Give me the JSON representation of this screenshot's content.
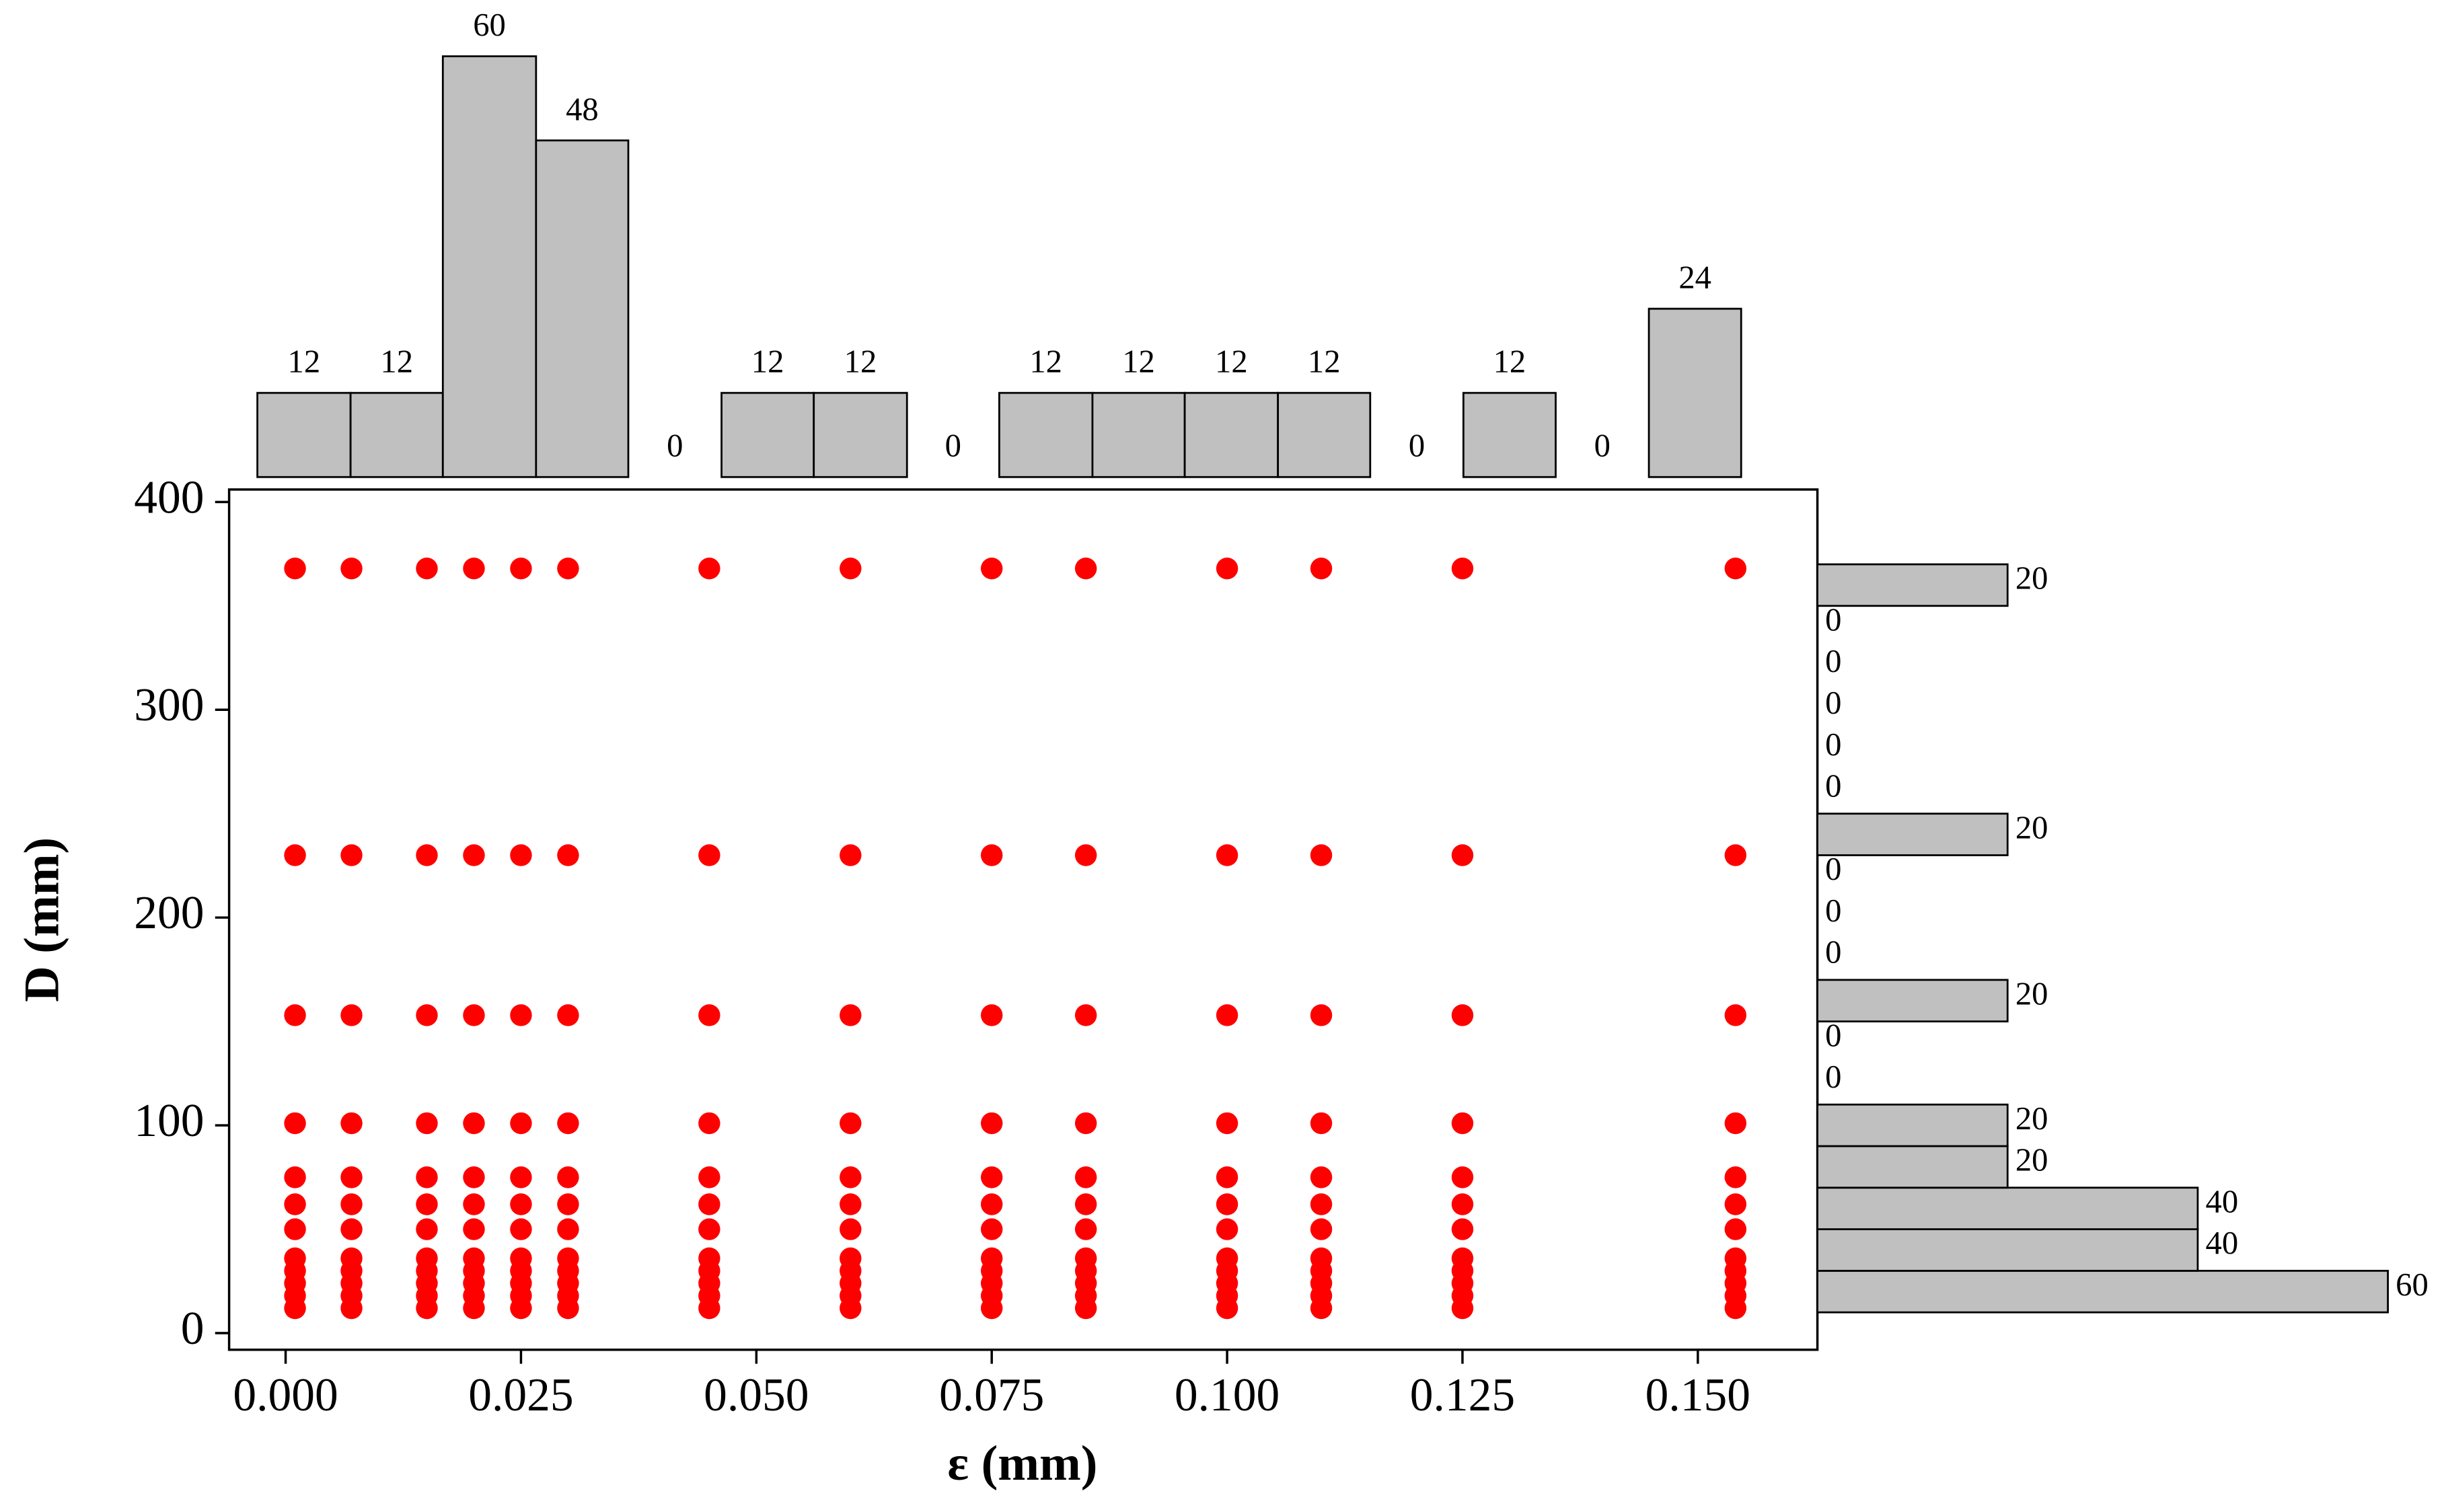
{
  "chart_data": [
    {
      "type": "scatter",
      "color": "#ff0000",
      "xlabel": "ε (mm)",
      "ylabel": "D (mm)",
      "xlim": [
        -0.006,
        0.1627
      ],
      "ylim": [
        -8,
        406
      ],
      "xticks": [
        {
          "value": 0,
          "label": "0.000"
        },
        {
          "value": 0.025,
          "label": "0.025"
        },
        {
          "value": 0.05,
          "label": "0.050"
        },
        {
          "value": 0.075,
          "label": "0.075"
        },
        {
          "value": 0.1,
          "label": "0.100"
        },
        {
          "value": 0.125,
          "label": "0.125"
        },
        {
          "value": 0.15,
          "label": "0.150"
        }
      ],
      "yticks": [
        0,
        100,
        200,
        300,
        400
      ],
      "x": [
        0.001,
        0.007,
        0.015,
        0.02,
        0.025,
        0.03,
        0.045,
        0.06,
        0.075,
        0.085,
        0.1,
        0.11,
        0.125,
        0.154,
        0.001,
        0.007,
        0.015,
        0.02,
        0.025,
        0.03,
        0.045,
        0.06,
        0.075,
        0.085,
        0.1,
        0.11,
        0.125,
        0.154,
        0.001,
        0.007,
        0.015,
        0.02,
        0.025,
        0.03,
        0.045,
        0.06,
        0.075,
        0.085,
        0.1,
        0.11,
        0.125,
        0.154,
        0.001,
        0.007,
        0.015,
        0.02,
        0.025,
        0.03,
        0.045,
        0.06,
        0.075,
        0.085,
        0.1,
        0.11,
        0.125,
        0.154,
        0.001,
        0.007,
        0.015,
        0.02,
        0.025,
        0.03,
        0.045,
        0.06,
        0.075,
        0.085,
        0.1,
        0.11,
        0.125,
        0.154,
        0.001,
        0.007,
        0.015,
        0.02,
        0.025,
        0.03,
        0.045,
        0.06,
        0.075,
        0.085,
        0.1,
        0.11,
        0.125,
        0.154,
        0.001,
        0.007,
        0.015,
        0.02,
        0.025,
        0.03,
        0.045,
        0.06,
        0.075,
        0.085,
        0.1,
        0.11,
        0.125,
        0.154,
        0.001,
        0.007,
        0.015,
        0.02,
        0.025,
        0.03,
        0.045,
        0.06,
        0.075,
        0.085,
        0.1,
        0.11,
        0.125,
        0.154,
        0.001,
        0.007,
        0.015,
        0.02,
        0.025,
        0.03,
        0.045,
        0.06,
        0.075,
        0.085,
        0.1,
        0.11,
        0.125,
        0.154,
        0.001,
        0.007,
        0.015,
        0.02,
        0.025,
        0.03,
        0.045,
        0.06,
        0.075,
        0.085,
        0.1,
        0.11,
        0.125,
        0.154,
        0.001,
        0.007,
        0.015,
        0.02,
        0.025,
        0.03,
        0.045,
        0.06,
        0.075,
        0.085,
        0.1,
        0.11,
        0.125,
        0.154,
        0.001,
        0.007,
        0.015,
        0.02,
        0.025,
        0.03,
        0.045,
        0.06,
        0.075,
        0.085,
        0.1,
        0.11,
        0.125,
        0.154
      ],
      "values": [
        12,
        12,
        12,
        12,
        12,
        12,
        12,
        12,
        12,
        12,
        12,
        12,
        12,
        12,
        18,
        18,
        18,
        18,
        18,
        18,
        18,
        18,
        18,
        18,
        18,
        18,
        18,
        18,
        24,
        24,
        24,
        24,
        24,
        24,
        24,
        24,
        24,
        24,
        24,
        24,
        24,
        24,
        30,
        30,
        30,
        30,
        30,
        30,
        30,
        30,
        30,
        30,
        30,
        30,
        30,
        30,
        36,
        36,
        36,
        36,
        36,
        36,
        36,
        36,
        36,
        36,
        36,
        36,
        36,
        36,
        50,
        50,
        50,
        50,
        50,
        50,
        50,
        50,
        50,
        50,
        50,
        50,
        50,
        50,
        62,
        62,
        62,
        62,
        62,
        62,
        62,
        62,
        62,
        62,
        62,
        62,
        62,
        62,
        75,
        75,
        75,
        75,
        75,
        75,
        75,
        75,
        75,
        75,
        75,
        75,
        75,
        75,
        101,
        101,
        101,
        101,
        101,
        101,
        101,
        101,
        101,
        101,
        101,
        101,
        101,
        101,
        153,
        153,
        153,
        153,
        153,
        153,
        153,
        153,
        153,
        153,
        153,
        153,
        153,
        153,
        230,
        230,
        230,
        230,
        230,
        230,
        230,
        230,
        230,
        230,
        230,
        230,
        230,
        230,
        368,
        368,
        368,
        368,
        368,
        368,
        368,
        368,
        368,
        368,
        368,
        368,
        368,
        368
      ]
    },
    {
      "type": "histogram",
      "orientation": "vertical",
      "color": "#c0c0c0",
      "bins": [
        -0.003,
        0.0069,
        0.0167,
        0.0266,
        0.0364,
        0.0463,
        0.0561,
        0.066,
        0.0758,
        0.0857,
        0.0955,
        0.1054,
        0.1152,
        0.1251,
        0.1349,
        0.1448,
        0.1546
      ],
      "counts": [
        12,
        12,
        60,
        48,
        0,
        12,
        12,
        0,
        12,
        12,
        12,
        12,
        0,
        12,
        0,
        24
      ],
      "ylim": [
        0,
        60
      ]
    },
    {
      "type": "histogram",
      "orientation": "horizontal",
      "color": "#c0c0c0",
      "bins": [
        10,
        30,
        50,
        70,
        90,
        110,
        130,
        150,
        170,
        190,
        210,
        230,
        250,
        270,
        290,
        310,
        330,
        350,
        370
      ],
      "counts": [
        60,
        40,
        40,
        20,
        20,
        0,
        0,
        20,
        0,
        0,
        0,
        20,
        0,
        0,
        0,
        0,
        0,
        20
      ],
      "xlim": [
        0,
        60
      ]
    }
  ]
}
